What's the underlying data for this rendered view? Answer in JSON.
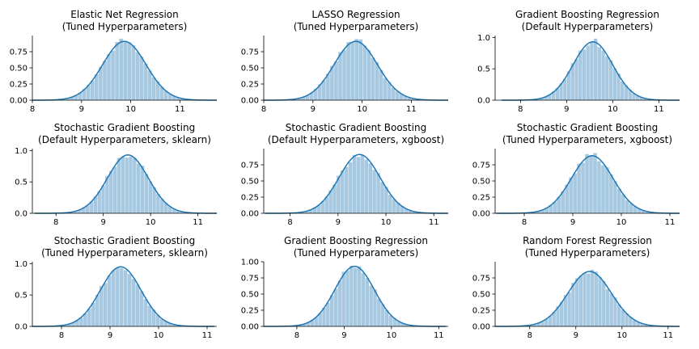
{
  "colors": {
    "bars": "#a6c8e0",
    "kde_line": "#1f77b4",
    "axes": "#000000",
    "background": "#ffffff"
  },
  "chart_data": [
    {
      "type": "histogram",
      "title_lines": [
        "Elastic Net Regression",
        "(Tuned Hyperparameters)"
      ],
      "mean": 9.87,
      "sd": 0.44,
      "peak": 0.91,
      "xlim": [
        8.0,
        11.75
      ],
      "ylim": [
        0,
        1.0
      ],
      "xticks": [
        8,
        9,
        10,
        11
      ],
      "xtick_labels": [
        "8",
        "9",
        "10",
        "11"
      ],
      "yticks": [
        0.0,
        0.25,
        0.5,
        0.75
      ],
      "ytick_labels": [
        "0.00",
        "0.25",
        "0.50",
        "0.75"
      ],
      "bin_width": 0.083
    },
    {
      "type": "histogram",
      "title_lines": [
        "LASSO Regression",
        "(Tuned Hyperparameters)"
      ],
      "mean": 9.87,
      "sd": 0.44,
      "peak": 0.91,
      "xlim": [
        8.0,
        11.75
      ],
      "ylim": [
        0,
        1.0
      ],
      "xticks": [
        8,
        9,
        10,
        11
      ],
      "xtick_labels": [
        "8",
        "9",
        "10",
        "11"
      ],
      "yticks": [
        0.0,
        0.25,
        0.5,
        0.75
      ],
      "ytick_labels": [
        "0.00",
        "0.25",
        "0.50",
        "0.75"
      ],
      "bin_width": 0.083
    },
    {
      "type": "histogram",
      "title_lines": [
        "Gradient Boosting Regression",
        "(Default Hyperparameters)"
      ],
      "mean": 9.57,
      "sd": 0.43,
      "peak": 0.93,
      "xlim": [
        7.45,
        11.45
      ],
      "ylim": [
        0,
        1.03
      ],
      "xticks": [
        8,
        9,
        10,
        11
      ],
      "xtick_labels": [
        "8",
        "9",
        "10",
        "11"
      ],
      "yticks": [
        0.0,
        0.5,
        1.0
      ],
      "ytick_labels": [
        "0.0",
        "0.5",
        "1.0"
      ],
      "bin_width": 0.083
    },
    {
      "type": "histogram",
      "title_lines": [
        "Stochastic Gradient Boosting",
        "(Default Hyperparameters, sklearn)"
      ],
      "mean": 9.52,
      "sd": 0.43,
      "peak": 0.93,
      "xlim": [
        7.5,
        11.4
      ],
      "ylim": [
        0,
        1.03
      ],
      "xticks": [
        8,
        9,
        10,
        11
      ],
      "xtick_labels": [
        "8",
        "9",
        "10",
        "11"
      ],
      "yticks": [
        0.0,
        0.5,
        1.0
      ],
      "ytick_labels": [
        "0.0",
        "0.5",
        "1.0"
      ],
      "bin_width": 0.083
    },
    {
      "type": "histogram",
      "title_lines": [
        "Stochastic Gradient Boosting",
        "(Default Hyperparameters, xgboost)"
      ],
      "mean": 9.45,
      "sd": 0.43,
      "peak": 0.91,
      "xlim": [
        7.45,
        11.3
      ],
      "ylim": [
        0,
        1.0
      ],
      "xticks": [
        8,
        9,
        10,
        11
      ],
      "xtick_labels": [
        "8",
        "9",
        "10",
        "11"
      ],
      "yticks": [
        0.0,
        0.25,
        0.5,
        0.75
      ],
      "ytick_labels": [
        "0.00",
        "0.25",
        "0.50",
        "0.75"
      ],
      "bin_width": 0.083
    },
    {
      "type": "histogram",
      "title_lines": [
        "Stochastic Gradient Boosting",
        "(Tuned Hyperparameters, xgboost)"
      ],
      "mean": 9.4,
      "sd": 0.43,
      "peak": 0.89,
      "xlim": [
        7.4,
        11.2
      ],
      "ylim": [
        0,
        1.0
      ],
      "xticks": [
        8,
        9,
        10,
        11
      ],
      "xtick_labels": [
        "8",
        "9",
        "10",
        "11"
      ],
      "yticks": [
        0.0,
        0.25,
        0.5,
        0.75
      ],
      "ytick_labels": [
        "0.00",
        "0.25",
        "0.50",
        "0.75"
      ],
      "bin_width": 0.083
    },
    {
      "type": "histogram",
      "title_lines": [
        "Stochastic Gradient Boosting",
        "(Tuned Hyperparameters, sklearn)"
      ],
      "mean": 9.22,
      "sd": 0.42,
      "peak": 0.95,
      "xlim": [
        7.4,
        11.2
      ],
      "ylim": [
        0,
        1.03
      ],
      "xticks": [
        8,
        9,
        10,
        11
      ],
      "xtick_labels": [
        "8",
        "9",
        "10",
        "11"
      ],
      "yticks": [
        0.0,
        0.5,
        1.0
      ],
      "ytick_labels": [
        "0.0",
        "0.5",
        "1.0"
      ],
      "bin_width": 0.083
    },
    {
      "type": "histogram",
      "title_lines": [
        "Gradient Boosting Regression",
        "(Tuned Hyperparameters)"
      ],
      "mean": 9.22,
      "sd": 0.42,
      "peak": 0.93,
      "xlim": [
        7.3,
        11.2
      ],
      "ylim": [
        0,
        1.0
      ],
      "xticks": [
        8,
        9,
        10,
        11
      ],
      "xtick_labels": [
        "8",
        "9",
        "10",
        "11"
      ],
      "yticks": [
        0.0,
        0.25,
        0.5,
        0.75,
        1.0
      ],
      "ytick_labels": [
        "0.00",
        "0.25",
        "0.50",
        "0.75",
        "1.00"
      ],
      "bin_width": 0.083
    },
    {
      "type": "histogram",
      "title_lines": [
        "Random Forest Regression",
        "(Tuned Hyperparameters)"
      ],
      "mean": 9.3,
      "sd": 0.47,
      "peak": 0.85,
      "xlim": [
        7.25,
        11.25
      ],
      "ylim": [
        0,
        1.0
      ],
      "xticks": [
        8,
        9,
        10,
        11
      ],
      "xtick_labels": [
        "8",
        "9",
        "10",
        "11"
      ],
      "yticks": [
        0.0,
        0.25,
        0.5,
        0.75
      ],
      "ytick_labels": [
        "0.00",
        "0.25",
        "0.50",
        "0.75"
      ],
      "bin_width": 0.083
    }
  ]
}
